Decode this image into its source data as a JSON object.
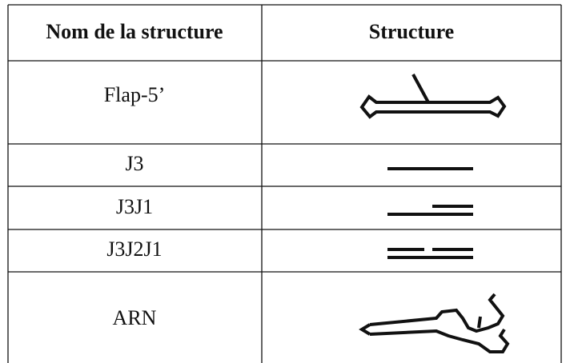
{
  "table": {
    "columns": [
      "Nom de la structure",
      "Structure"
    ],
    "rows": [
      "Flap-5’",
      "J3",
      "J3J1",
      "J3J2J1",
      "ARN"
    ]
  }
}
